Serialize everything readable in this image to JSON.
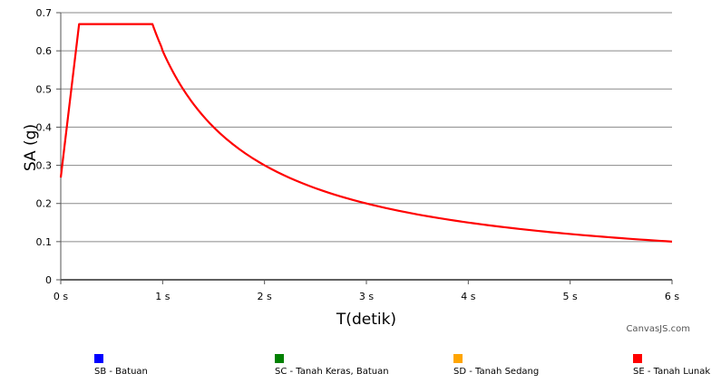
{
  "chart_data": {
    "type": "line",
    "xlabel": "T(detik)",
    "ylabel": "SA (g)",
    "xlim": [
      0,
      6
    ],
    "ylim": [
      0,
      0.7
    ],
    "x_ticks": [
      "0 s",
      "1 s",
      "2 s",
      "3 s",
      "4 s",
      "5 s",
      "6 s"
    ],
    "y_ticks": [
      "0",
      "0.1",
      "0.2",
      "0.3",
      "0.4",
      "0.5",
      "0.6",
      "0.7"
    ],
    "grid": "horizontal",
    "legend_position": "bottom",
    "credit": "CanvasJS.com",
    "series": [
      {
        "name": "SB - Batuan",
        "color": "#0000ff",
        "points": []
      },
      {
        "name": "SC - Tanah Keras, Batuan",
        "color": "#008000",
        "points": []
      },
      {
        "name": "SD - Tanah Sedang",
        "color": "#ffa500",
        "points": []
      },
      {
        "name": "SE - Tanah Lunak",
        "color": "#ff0000",
        "points": [
          [
            0,
            0.268
          ],
          [
            0.18,
            0.67
          ],
          [
            0.9,
            0.67
          ],
          [
            1.0,
            0.6
          ],
          [
            1.2,
            0.5
          ],
          [
            1.5,
            0.4
          ],
          [
            2.0,
            0.3
          ],
          [
            2.5,
            0.24
          ],
          [
            3.0,
            0.2
          ],
          [
            3.5,
            0.1714
          ],
          [
            4.0,
            0.15
          ],
          [
            4.5,
            0.1333
          ],
          [
            5.0,
            0.12
          ],
          [
            5.5,
            0.1091
          ],
          [
            6.0,
            0.1
          ]
        ]
      }
    ]
  }
}
